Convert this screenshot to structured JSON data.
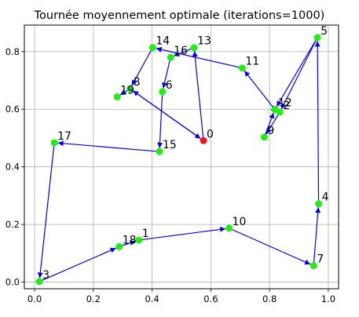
{
  "chart_data": {
    "type": "scatter",
    "title": "Tournée moyennement optimale (iterations=1000)",
    "xlabel": "",
    "ylabel": "",
    "xlim": [
      -0.035,
      1.035
    ],
    "ylim": [
      -0.023,
      0.892
    ],
    "xticks": [
      "0.0",
      "0.2",
      "0.4",
      "0.6",
      "0.8",
      "1.0"
    ],
    "xtick_values": [
      0.0,
      0.2,
      0.4,
      0.6,
      0.8,
      1.0
    ],
    "yticks": [
      "0.0",
      "0.2",
      "0.4",
      "0.6",
      "0.8"
    ],
    "ytick_values": [
      0.0,
      0.2,
      0.4,
      0.6,
      0.8
    ],
    "grid": true,
    "colors": {
      "route": "#0000ee",
      "node": "#22ee11",
      "start": "#ff1111",
      "grid": "#b0b0b0"
    },
    "points": [
      {
        "id": "0",
        "label": "0",
        "x": 0.575,
        "y": 0.491,
        "start": true
      },
      {
        "id": "1",
        "label": "1",
        "x": 0.355,
        "y": 0.146
      },
      {
        "id": "2",
        "label": "2",
        "x": 0.835,
        "y": 0.59
      },
      {
        "id": "3",
        "label": "3",
        "x": 0.016,
        "y": 0.002
      },
      {
        "id": "4",
        "label": "4",
        "x": 0.967,
        "y": 0.272
      },
      {
        "id": "5",
        "label": "5",
        "x": 0.963,
        "y": 0.849
      },
      {
        "id": "7",
        "label": "7",
        "x": 0.95,
        "y": 0.057
      },
      {
        "id": "6",
        "label": "6",
        "x": 0.435,
        "y": 0.661
      },
      {
        "id": "8",
        "label": "8",
        "x": 0.325,
        "y": 0.671
      },
      {
        "id": "9",
        "label": "9",
        "x": 0.782,
        "y": 0.503
      },
      {
        "id": "10",
        "label": "10",
        "x": 0.662,
        "y": 0.187
      },
      {
        "id": "11",
        "label": "11",
        "x": 0.707,
        "y": 0.743
      },
      {
        "id": "12",
        "label": "12",
        "x": 0.818,
        "y": 0.599
      },
      {
        "id": "13",
        "label": "13",
        "x": 0.543,
        "y": 0.814
      },
      {
        "id": "14",
        "label": "14",
        "x": 0.402,
        "y": 0.814
      },
      {
        "id": "15",
        "label": "15",
        "x": 0.425,
        "y": 0.453
      },
      {
        "id": "16",
        "label": "16",
        "x": 0.463,
        "y": 0.78
      },
      {
        "id": "17",
        "label": "17",
        "x": 0.067,
        "y": 0.484
      },
      {
        "id": "18",
        "label": "18",
        "x": 0.288,
        "y": 0.123
      },
      {
        "id": "19",
        "label": "19",
        "x": 0.281,
        "y": 0.643
      }
    ],
    "route": [
      "0",
      "13",
      "16",
      "6",
      "15",
      "17",
      "3",
      "18",
      "1",
      "10",
      "7",
      "4",
      "5",
      "12",
      "11",
      "14",
      "8",
      "0"
    ],
    "route_tail": [
      "0",
      "8",
      "19"
    ],
    "route_extra": [
      [
        "2",
        "9"
      ],
      [
        "9",
        "12"
      ],
      [
        "12",
        "2"
      ],
      [
        "5",
        "2"
      ]
    ]
  }
}
